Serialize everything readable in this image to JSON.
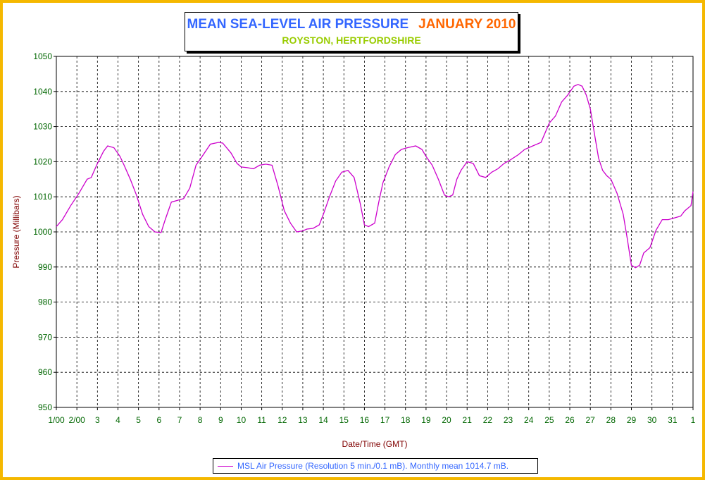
{
  "chart_data": {
    "type": "line",
    "title": "MEAN SEA-LEVEL AIR PRESSURE",
    "title_month": "JANUARY 2010",
    "subtitle": "ROYSTON, HERTFORDSHIRE",
    "xlabel": "Date/Time (GMT)",
    "ylabel": "Pressure (Millibars)",
    "ylim": [
      950,
      1050
    ],
    "y_ticks": [
      950,
      960,
      970,
      980,
      990,
      1000,
      1010,
      1020,
      1030,
      1040,
      1050
    ],
    "xlim_days": [
      1,
      32
    ],
    "x_tick_labels": [
      "1/00",
      "2/00",
      "3",
      "4",
      "5",
      "6",
      "7",
      "8",
      "9",
      "10",
      "11",
      "12",
      "13",
      "14",
      "15",
      "16",
      "17",
      "18",
      "19",
      "20",
      "21",
      "22",
      "23",
      "24",
      "25",
      "26",
      "27",
      "28",
      "29",
      "30",
      "31",
      "1"
    ],
    "grid": true,
    "line_color": "#cc00cc",
    "legend_position": "bottom",
    "series": [
      {
        "name": "MSL Air Pressure (Resolution 5 min./0.1 mB). Monthly mean 1014.7 mB.",
        "x": [
          1.0,
          1.3,
          1.7,
          2.1,
          2.5,
          2.7,
          3.0,
          3.3,
          3.5,
          3.8,
          4.1,
          4.3,
          4.6,
          4.9,
          5.2,
          5.5,
          5.8,
          6.1,
          6.3,
          6.6,
          6.9,
          7.2,
          7.5,
          7.8,
          8.1,
          8.5,
          8.9,
          9.1,
          9.5,
          9.8,
          10.0,
          10.3,
          10.6,
          10.9,
          11.2,
          11.5,
          11.8,
          12.1,
          12.4,
          12.7,
          13.0,
          13.2,
          13.5,
          13.8,
          14.0,
          14.3,
          14.6,
          14.9,
          15.2,
          15.5,
          15.8,
          16.0,
          16.2,
          16.5,
          16.7,
          16.9,
          17.2,
          17.5,
          17.8,
          18.1,
          18.5,
          18.8,
          19.0,
          19.3,
          19.6,
          19.9,
          20.1,
          20.3,
          20.5,
          20.7,
          21.0,
          21.3,
          21.6,
          21.9,
          22.2,
          22.5,
          22.8,
          23.1,
          23.5,
          23.8,
          24.2,
          24.6,
          25.0,
          25.3,
          25.6,
          25.9,
          26.2,
          26.4,
          26.6,
          26.8,
          27.0,
          27.2,
          27.4,
          27.6,
          27.8,
          28.0,
          28.3,
          28.6,
          28.8,
          29.0,
          29.2,
          29.4,
          29.6,
          29.9,
          30.2,
          30.5,
          30.8,
          31.1,
          31.4,
          31.6,
          31.9,
          32.0
        ],
        "values": [
          1001.5,
          1003.5,
          1007.5,
          1011.0,
          1015.0,
          1015.5,
          1019.5,
          1023.0,
          1024.5,
          1024.0,
          1021.5,
          1019.0,
          1015.0,
          1010.5,
          1005.0,
          1001.5,
          1000.0,
          999.8,
          1003.5,
          1008.5,
          1009.0,
          1009.5,
          1012.5,
          1019.0,
          1021.5,
          1025.0,
          1025.5,
          1025.3,
          1022.5,
          1019.5,
          1018.5,
          1018.3,
          1018.0,
          1019.0,
          1019.3,
          1019.0,
          1013.0,
          1006.0,
          1002.5,
          1000.0,
          1000.3,
          1000.8,
          1001.0,
          1002.0,
          1005.0,
          1010.0,
          1014.5,
          1017.0,
          1017.5,
          1015.5,
          1008.0,
          1002.0,
          1001.5,
          1002.5,
          1008.5,
          1014.0,
          1018.5,
          1022.0,
          1023.5,
          1024.0,
          1024.5,
          1023.5,
          1021.5,
          1019.0,
          1015.0,
          1010.5,
          1010.0,
          1010.5,
          1015.0,
          1017.5,
          1020.0,
          1019.5,
          1016.0,
          1015.5,
          1017.0,
          1018.0,
          1019.5,
          1020.5,
          1022.0,
          1023.5,
          1024.5,
          1025.5,
          1031.0,
          1033.0,
          1037.0,
          1039.0,
          1041.5,
          1042.0,
          1041.5,
          1039.0,
          1035.0,
          1028.0,
          1021.0,
          1017.5,
          1016.0,
          1015.0,
          1011.0,
          1005.0,
          998.0,
          990.5,
          989.8,
          990.5,
          994.0,
          995.5,
          1000.5,
          1003.5,
          1003.5,
          1004.0,
          1004.5,
          1006.0,
          1007.5,
          1011.5
        ]
      }
    ]
  }
}
